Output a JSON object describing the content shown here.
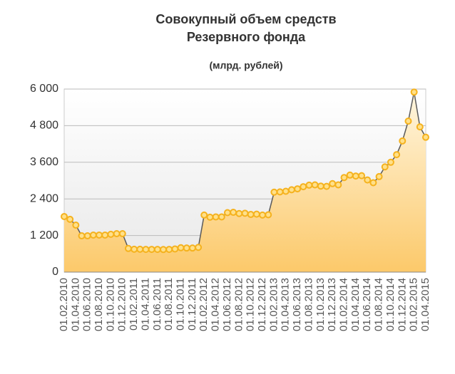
{
  "chart_data": {
    "type": "line",
    "title": [
      "Совокупный объем средств",
      "Резервного фонда"
    ],
    "subtitle": "(млрд. рублей)",
    "categories": [
      "01.02.2010",
      null,
      "01.04.2010",
      null,
      "01.06.2010",
      null,
      "01.08.2010",
      null,
      "01.10.2010",
      null,
      "01.12.2010",
      null,
      "01.02.2011",
      null,
      "01.04.2011",
      null,
      "01.06.2011",
      null,
      "01.08.2011",
      null,
      "01.10.2011",
      null,
      "01.12.2011",
      null,
      "01.02.2012",
      null,
      "01.04.2012",
      null,
      "01.06.2012",
      null,
      "01.08.2012",
      null,
      "01.10.2012",
      null,
      "01.12.2012",
      null,
      "01.02.2013",
      null,
      "01.04.2013",
      null,
      "01.06.2013",
      null,
      "01.08.2013",
      null,
      "01.10.2013",
      null,
      "01.12.2013",
      null,
      "01.02.2014",
      null,
      "01.04.2014",
      null,
      "01.06.2014",
      null,
      "01.08.2014",
      null,
      "01.10.2014",
      null,
      "01.12.2014",
      null,
      "01.02.2015",
      null,
      "01.04.2015"
    ],
    "values": [
      1822,
      1730,
      1540,
      1190,
      1190,
      1215,
      1215,
      1215,
      1240,
      1260,
      1260,
      775,
      750,
      750,
      745,
      745,
      745,
      740,
      745,
      760,
      800,
      790,
      790,
      811,
      1870,
      1800,
      1810,
      1810,
      1950,
      1960,
      1920,
      1930,
      1890,
      1900,
      1870,
      1880,
      2620,
      2630,
      2650,
      2700,
      2730,
      2800,
      2850,
      2860,
      2820,
      2810,
      2900,
      2860,
      3100,
      3180,
      3150,
      3160,
      3020,
      2930,
      3130,
      3450,
      3600,
      3850,
      4300,
      4950,
      5900,
      4760,
      4420
    ],
    "color": "#5a5a5a",
    "marker_color": "#f5b21e",
    "ylim": [
      0,
      6000
    ],
    "yticks": [
      0,
      {
        "value": 1200,
        "label": "1 200"
      },
      {
        "value": 2400,
        "label": "2 400"
      },
      {
        "value": 3600,
        "label": "3 600"
      },
      {
        "value": 4800,
        "label": "4 800"
      },
      {
        "value": 6000,
        "label": "6 000"
      }
    ],
    "grid": true
  }
}
